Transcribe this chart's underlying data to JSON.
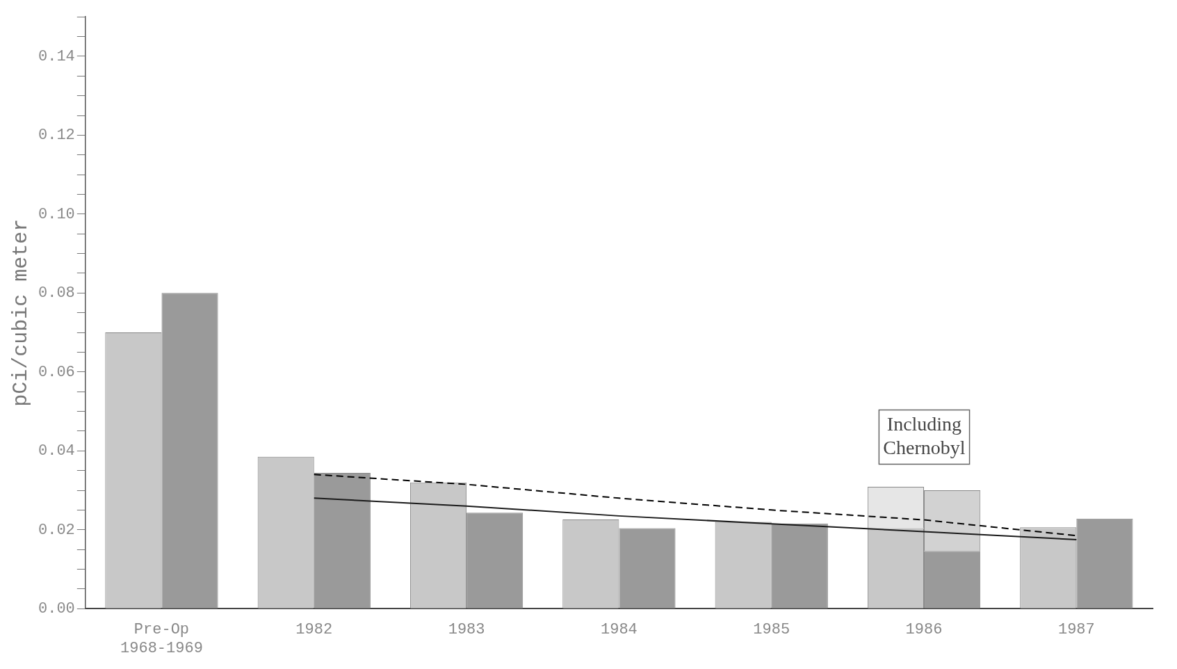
{
  "chart_data": {
    "type": "bar",
    "ylabel": "pCi/cubic meter",
    "categories": [
      "Pre-Op\n1968-1969",
      "1982",
      "1983",
      "1984",
      "1985",
      "1986",
      "1987"
    ],
    "series": [
      {
        "color": "#c8c8c8",
        "values": [
          0.07,
          0.0385,
          0.032,
          0.0226,
          0.022,
          0.0204,
          0.0206
        ]
      },
      {
        "color": "#e6e6e6",
        "values": [
          null,
          null,
          null,
          null,
          null,
          0.0105,
          null
        ],
        "base": [
          null,
          null,
          null,
          null,
          null,
          0.0204,
          null
        ]
      },
      {
        "color": "#9a9a9a",
        "values": [
          0.08,
          0.0344,
          0.0243,
          0.0204,
          0.0216,
          0.0146,
          0.0228
        ]
      },
      {
        "color": "#d2d2d2",
        "values": [
          null,
          null,
          null,
          null,
          null,
          0.0154,
          null
        ],
        "base": [
          null,
          null,
          null,
          null,
          null,
          0.0146,
          null
        ]
      },
      {
        "type": "line",
        "color": "#000000",
        "line_style": "dashed",
        "values": [
          null,
          0.034,
          0.0315,
          0.028,
          0.025,
          0.0225,
          0.0185
        ]
      },
      {
        "type": "line",
        "color": "#1a1a1a",
        "line_style": "solid",
        "values": [
          null,
          0.028,
          0.026,
          0.0235,
          0.0215,
          0.0195,
          0.0175
        ]
      }
    ],
    "ylim": [
      0,
      0.15
    ],
    "yticks": [
      {
        "value": 0,
        "label": "0.00"
      },
      {
        "value": 0.005,
        "label": null
      },
      {
        "value": 0.01,
        "label": null
      },
      {
        "value": 0.015,
        "label": null
      },
      {
        "value": 0.02,
        "label": "0.02"
      },
      {
        "value": 0.025,
        "label": null
      },
      {
        "value": 0.03,
        "label": null
      },
      {
        "value": 0.035,
        "label": null
      },
      {
        "value": 0.04,
        "label": "0.04"
      },
      {
        "value": 0.045,
        "label": null
      },
      {
        "value": 0.05,
        "label": null
      },
      {
        "value": 0.055,
        "label": null
      },
      {
        "value": 0.06,
        "label": "0.06"
      },
      {
        "value": 0.065,
        "label": null
      },
      {
        "value": 0.07,
        "label": null
      },
      {
        "value": 0.075,
        "label": null
      },
      {
        "value": 0.08,
        "label": "0.08"
      },
      {
        "value": 0.085,
        "label": null
      },
      {
        "value": 0.09,
        "label": null
      },
      {
        "value": 0.095,
        "label": null
      },
      {
        "value": 0.1,
        "label": "0.10"
      },
      {
        "value": 0.105,
        "label": null
      },
      {
        "value": 0.11,
        "label": null
      },
      {
        "value": 0.115,
        "label": null
      },
      {
        "value": 0.12,
        "label": "0.12"
      },
      {
        "value": 0.125,
        "label": null
      },
      {
        "value": 0.13,
        "label": null
      },
      {
        "value": 0.135,
        "label": null
      },
      {
        "value": 0.14,
        "label": "0.14"
      },
      {
        "value": 0.145,
        "label": null
      },
      {
        "value": 0.15,
        "label": null
      }
    ],
    "annotations": [
      "Including\nChernobyl"
    ],
    "grid": false,
    "legend": false,
    "marker": "none"
  }
}
